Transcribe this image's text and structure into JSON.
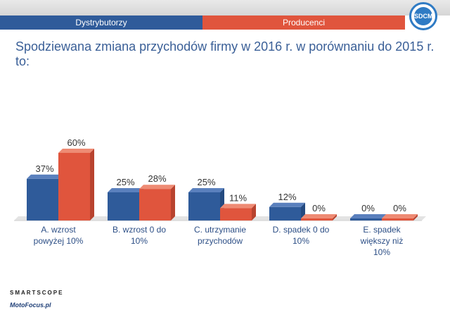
{
  "header": {
    "legend_left": "Dystrybutorzy",
    "legend_right": "Producenci",
    "logo_text": "SDCM"
  },
  "title": "Spodziewana zmiana przychodów firmy w 2016 r. w porównaniu do 2015 r. to:",
  "footer": {
    "brand1": "SMARTSCOPE",
    "brand2": "MotoFocus.pl"
  },
  "colors": {
    "blue": "#2f5b9a",
    "blue_side": "#244a80",
    "blue_top": "#5a80bd",
    "red": "#e0553d",
    "red_side": "#b8432f",
    "red_top": "#ee8b74"
  },
  "chart_data": {
    "type": "bar",
    "categories": [
      [
        "A. wzrost",
        "powyżej 10%"
      ],
      [
        "B. wzrost 0 do",
        "10%"
      ],
      [
        "C. utrzymanie",
        "przychodów"
      ],
      [
        "D. spadek 0 do",
        "10%"
      ],
      [
        "E. spadek",
        "większy niż",
        "10%"
      ]
    ],
    "series": [
      {
        "name": "Dystrybutorzy",
        "values": [
          37,
          25,
          25,
          12,
          0
        ],
        "labels": [
          "37%",
          "25%",
          "25%",
          "12%",
          "0%"
        ]
      },
      {
        "name": "Producenci",
        "values": [
          60,
          28,
          11,
          0,
          0
        ],
        "labels": [
          "60%",
          "28%",
          "11%",
          "0%",
          "0%"
        ]
      }
    ],
    "ylim": [
      0,
      60
    ],
    "grid": false,
    "legend": "top"
  }
}
